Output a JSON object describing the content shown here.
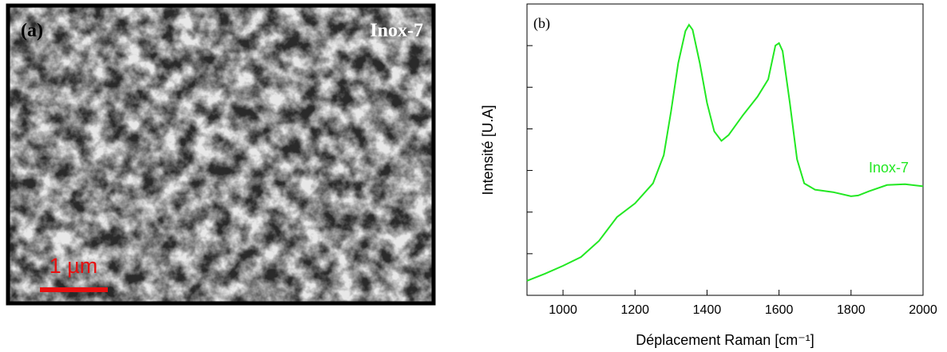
{
  "image_panel": {
    "label": "(a)",
    "sample": "Inox-7",
    "scale_bar": "1 µm"
  },
  "chart_data": {
    "type": "line",
    "panel_label": "(b)",
    "xlabel": "Déplacement Raman [cm⁻¹]",
    "ylabel": "Intensité [U.A]",
    "annotation": "Inox-7",
    "xlim": [
      900,
      2000
    ],
    "xticks": [
      1000,
      1200,
      1400,
      1600,
      1800,
      2000
    ],
    "ylim": [
      0,
      7
    ],
    "yticks": [
      1,
      2,
      3,
      4,
      5,
      6
    ],
    "series": [
      {
        "name": "Inox-7",
        "color": "#22e822",
        "x": [
          900,
          950,
          1000,
          1050,
          1100,
          1150,
          1200,
          1250,
          1280,
          1300,
          1320,
          1340,
          1350,
          1360,
          1380,
          1400,
          1420,
          1440,
          1460,
          1500,
          1540,
          1570,
          1590,
          1600,
          1610,
          1630,
          1650,
          1670,
          1700,
          1750,
          1800,
          1820,
          1850,
          1900,
          1950,
          2000
        ],
        "values": [
          0.35,
          0.52,
          0.71,
          0.92,
          1.31,
          1.88,
          2.21,
          2.69,
          3.37,
          4.42,
          5.58,
          6.35,
          6.5,
          6.38,
          5.58,
          4.62,
          3.94,
          3.71,
          3.85,
          4.33,
          4.77,
          5.19,
          6.0,
          6.06,
          5.87,
          4.62,
          3.27,
          2.69,
          2.54,
          2.48,
          2.38,
          2.4,
          2.5,
          2.65,
          2.67,
          2.62
        ]
      }
    ]
  }
}
